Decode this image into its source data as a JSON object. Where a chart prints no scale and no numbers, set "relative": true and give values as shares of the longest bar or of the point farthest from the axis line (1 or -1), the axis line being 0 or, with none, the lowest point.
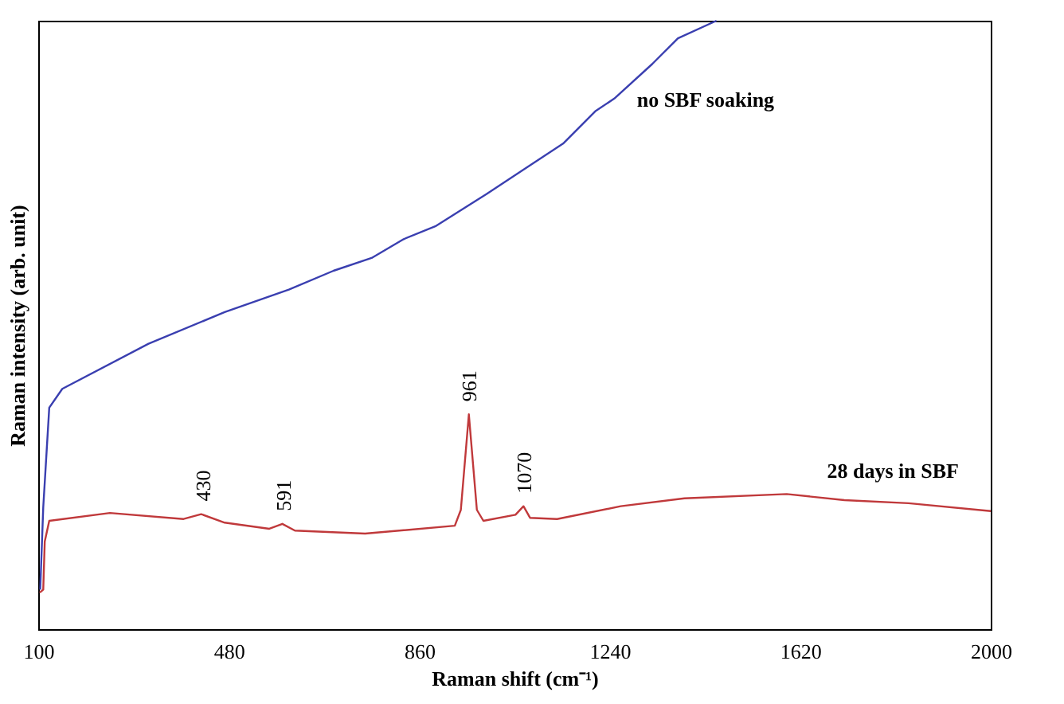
{
  "chart_data": {
    "type": "line",
    "xlabel": "Raman shift (cm⁻¹)",
    "ylabel": "Raman intensity (arb. unit)",
    "relative": true,
    "xlim": [
      100,
      2000
    ],
    "xticks": [
      100,
      480,
      860,
      1240,
      1620,
      2000
    ],
    "grid": false,
    "marker": "none",
    "line_style": "solid",
    "series": [
      {
        "name": "no SBF soaking",
        "color": "#3a3fb0",
        "x": [
          104,
          110,
          122,
          148,
          320,
          472,
          600,
          689,
          765,
          829,
          892,
          994,
          1071,
          1147,
          1211,
          1249,
          1325,
          1376,
          1453
        ],
        "values": [
          0.065,
          0.2,
          0.364,
          0.395,
          0.469,
          0.521,
          0.558,
          0.589,
          0.61,
          0.641,
          0.662,
          0.715,
          0.757,
          0.798,
          0.851,
          0.872,
          0.929,
          0.971,
          1.0
        ]
      },
      {
        "name": "28 days in SBF",
        "color": "#c0393b",
        "x": [
          103,
          110,
          113,
          122,
          243,
          390,
          425,
          472,
          561,
          587,
          612,
          752,
          931,
          943,
          959,
          975,
          988,
          1052,
          1068,
          1081,
          1135,
          1262,
          1389,
          1593,
          1708,
          1836,
          2000
        ],
        "values": [
          0.06,
          0.065,
          0.144,
          0.178,
          0.191,
          0.181,
          0.189,
          0.175,
          0.165,
          0.173,
          0.162,
          0.157,
          0.17,
          0.196,
          0.353,
          0.196,
          0.178,
          0.188,
          0.202,
          0.183,
          0.181,
          0.202,
          0.215,
          0.222,
          0.212,
          0.207,
          0.194
        ]
      }
    ],
    "annotations": [
      {
        "text": "430",
        "x": 430,
        "y": 0.189
      },
      {
        "text": "591",
        "x": 591,
        "y": 0.173
      },
      {
        "text": "961",
        "x": 961,
        "y": 0.353
      },
      {
        "text": "1070",
        "x": 1070,
        "y": 0.202
      }
    ]
  }
}
